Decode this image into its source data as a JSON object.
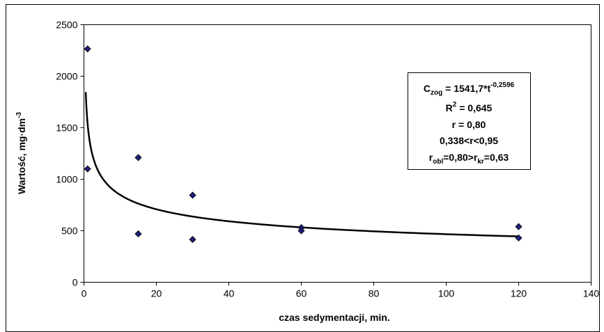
{
  "chart_data": {
    "type": "scatter",
    "title": "",
    "xlabel": "czas sedymentacji,  min.",
    "ylabel": {
      "main": "Wartość, mg",
      "dot": "·",
      "unit": "dm",
      "exp": "-3"
    },
    "xlim": [
      0,
      140
    ],
    "ylim": [
      0,
      2500
    ],
    "xticks": [
      0,
      20,
      40,
      60,
      80,
      100,
      120,
      140
    ],
    "yticks": [
      0,
      500,
      1000,
      1500,
      2000,
      2500
    ],
    "grid": false,
    "legend": "none",
    "series": [
      {
        "kind": "scatter",
        "marker": "diamond",
        "color": "#1f1f7a",
        "points": [
          [
            1,
            2265
          ],
          [
            1,
            1100
          ],
          [
            15,
            1210
          ],
          [
            15,
            470
          ],
          [
            30,
            845
          ],
          [
            30,
            415
          ],
          [
            60,
            530
          ],
          [
            60,
            500
          ],
          [
            120,
            540
          ],
          [
            120,
            430
          ]
        ]
      },
      {
        "kind": "fit",
        "model": "power",
        "a": 1541.7,
        "b": -0.2596,
        "x_range": [
          0.5,
          120
        ],
        "color": "#000000"
      }
    ],
    "annotation": {
      "eq": {
        "c": "C",
        "c_sub": "zog",
        "mid": " = 1541,7*t",
        "exp": "-0,2596"
      },
      "r2": {
        "main": "R",
        "exp": "2",
        "rest": "  = 0,645"
      },
      "r": "r = 0,80",
      "range": "0,338<r<0,95",
      "rcmp": {
        "r1": "r",
        "sub1": "obl",
        "mid": "=0,80>r",
        "sub2": "kr",
        "end": "=0,63"
      }
    }
  }
}
